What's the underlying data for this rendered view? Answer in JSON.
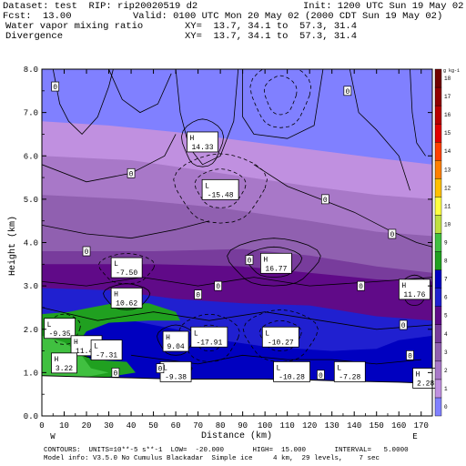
{
  "header": {
    "dataset": "Dataset: test  RIP: rip20020519 d2",
    "init": "Init: 1200 UTC Sun 19 May 02",
    "fcst_label": "Fcst:",
    "fcst_value": "13.00",
    "valid": "Valid: 0100 UTC Mon 20 May 02 (2000 CDT Sun 19 May 02)",
    "field1": "Water vapor mixing ratio",
    "xy1": "XY=  13.7, 34.1 to  57.3, 31.4",
    "field2": "Divergence",
    "xy2": "XY=  13.7, 34.1 to  57.3, 31.4"
  },
  "footer": {
    "contours": "CONTOURS:  UNITS=10**-5 s**-1  LOW=  -20.000       HIGH=  15.000       INTERVAL=   5.0000",
    "model": "Model info: V3.5.0 No Cumulus Blackadar  Simple ice     4 km,  29 levels,    7 sec"
  },
  "chart_data": {
    "type": "heatmap",
    "xlabel": "Distance (km)",
    "ylabel": "Height (km)",
    "xlim": [
      0,
      175
    ],
    "ylim": [
      0.0,
      8.0
    ],
    "x_ticks": [
      "0",
      "10",
      "20",
      "30",
      "40",
      "50",
      "60",
      "70",
      "80",
      "90",
      "100",
      "110",
      "120",
      "130",
      "140",
      "150",
      "160",
      "170"
    ],
    "y_ticks": [
      "0.0",
      "1.0",
      "2.0",
      "3.0",
      "4.0",
      "5.0",
      "6.0",
      "7.0",
      "8.0"
    ],
    "endpoint_left": "W",
    "endpoint_right": "E",
    "colorbar_units": "g kg-1",
    "colorbar_labels": [
      "0",
      "1",
      "2",
      "3",
      "4",
      "5",
      "6",
      "7",
      "8",
      "9",
      "10",
      "11",
      "12",
      "13",
      "14",
      "15",
      "16",
      "17",
      "18"
    ],
    "colorbar_colors": [
      "#8080ff",
      "#c090e0",
      "#a878c8",
      "#9060b0",
      "#783c9c",
      "#600a88",
      "#2020d0",
      "#0000c0",
      "#20a020",
      "#40c040",
      "#c0e040",
      "#ffff40",
      "#ffc000",
      "#ff8000",
      "#ff4000",
      "#e00000",
      "#b80000",
      "#900000",
      "#700000"
    ],
    "moisture_bands": [
      {
        "range": "0-1",
        "color": "#8080ff"
      },
      {
        "range": "1-2",
        "color": "#c090e0"
      },
      {
        "range": "2-3",
        "color": "#a878c8"
      },
      {
        "range": "3-4",
        "color": "#9060b0"
      },
      {
        "range": "4-5",
        "color": "#783c9c"
      },
      {
        "range": "5-6",
        "color": "#600a88"
      },
      {
        "range": "6-7",
        "color": "#2020d0"
      },
      {
        "range": "7-8",
        "color": "#0000c0"
      },
      {
        "range": "8-9",
        "color": "#20a020"
      },
      {
        "range": "9-10",
        "color": "#40c040"
      }
    ],
    "divergence_labels": [
      {
        "type": "H",
        "value": "14.33",
        "x": 72,
        "y": 6.3
      },
      {
        "type": "L",
        "value": "-15.48",
        "x": 80,
        "y": 5.2
      },
      {
        "type": "L",
        "value": "-7.50",
        "x": 38,
        "y": 3.4
      },
      {
        "type": "H",
        "value": "16.77",
        "x": 105,
        "y": 3.5
      },
      {
        "type": "H",
        "value": "10.62",
        "x": 38,
        "y": 2.7
      },
      {
        "type": "H",
        "value": "11.76",
        "x": 167,
        "y": 2.9
      },
      {
        "type": "L",
        "value": "-9.35",
        "x": 8,
        "y": 2.0
      },
      {
        "type": "H",
        "value": "11.45",
        "x": 20,
        "y": 1.6
      },
      {
        "type": "L",
        "value": "-7.31",
        "x": 29,
        "y": 1.5
      },
      {
        "type": "H",
        "value": "9.04",
        "x": 60,
        "y": 1.7
      },
      {
        "type": "L",
        "value": "-17.91",
        "x": 75,
        "y": 1.8
      },
      {
        "type": "L",
        "value": "-10.27",
        "x": 107,
        "y": 1.8
      },
      {
        "type": "H",
        "value": "3.22",
        "x": 10,
        "y": 1.2
      },
      {
        "type": "L",
        "value": "-9.38",
        "x": 60,
        "y": 1.0
      },
      {
        "type": "L",
        "value": "-10.28",
        "x": 112,
        "y": 1.0
      },
      {
        "type": "L",
        "value": "-7.28",
        "x": 138,
        "y": 1.0
      },
      {
        "type": "H",
        "value": "2.28",
        "x": 172,
        "y": 0.85
      }
    ],
    "zero_labels": [
      {
        "x": 6,
        "y": 7.6
      },
      {
        "x": 137,
        "y": 7.5
      },
      {
        "x": 40,
        "y": 5.6
      },
      {
        "x": 127,
        "y": 5.0
      },
      {
        "x": 157,
        "y": 4.2
      },
      {
        "x": 20,
        "y": 3.8
      },
      {
        "x": 93,
        "y": 3.6
      },
      {
        "x": 79,
        "y": 3.0
      },
      {
        "x": 70,
        "y": 2.8
      },
      {
        "x": 143,
        "y": 3.0
      },
      {
        "x": 162,
        "y": 2.1
      },
      {
        "x": 165,
        "y": 1.4
      },
      {
        "x": 53,
        "y": 1.1
      },
      {
        "x": 33,
        "y": 1.0
      },
      {
        "x": 125,
        "y": 0.95
      }
    ]
  }
}
